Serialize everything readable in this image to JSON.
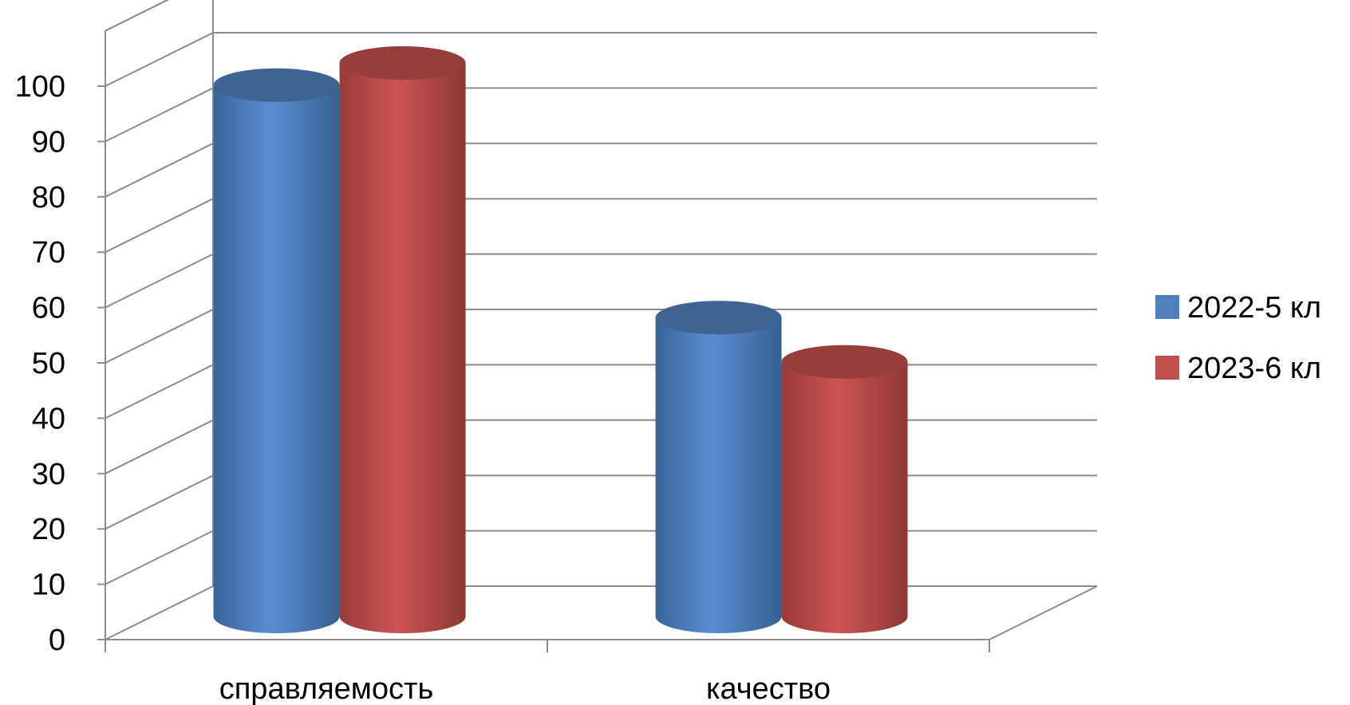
{
  "chart_data": {
    "type": "bar",
    "style": "3d-cylinder",
    "categories": [
      "справляемость",
      "качество"
    ],
    "series": [
      {
        "name": "2022-5 кл",
        "values": [
          96,
          54
        ],
        "color": "#4F81BD"
      },
      {
        "name": "2023-6 кл",
        "values": [
          100,
          46
        ],
        "color": "#C0504D"
      }
    ],
    "y_ticks": [
      "0",
      "10",
      "20",
      "30",
      "40",
      "50",
      "60",
      "70",
      "80",
      "90",
      "100"
    ],
    "ylim": [
      0,
      110
    ],
    "grid": true,
    "legend_position": "right"
  }
}
